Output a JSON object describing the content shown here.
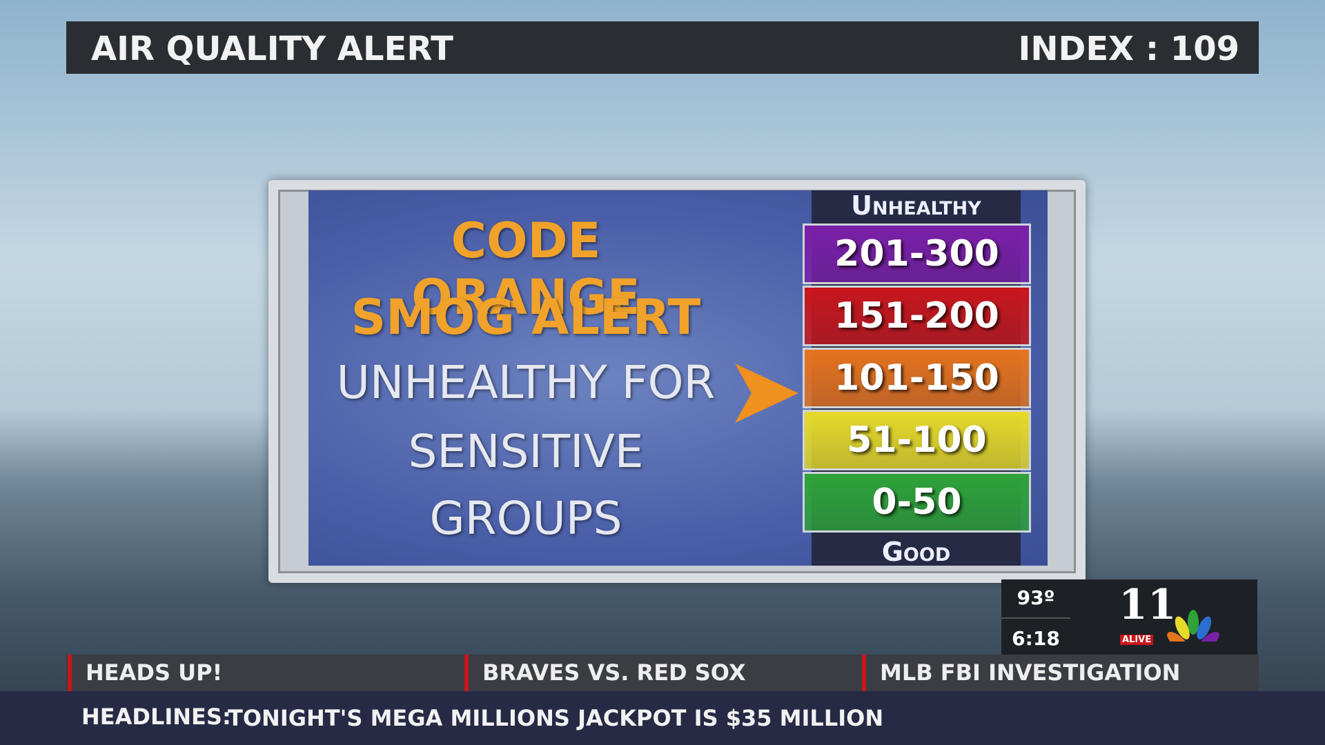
{
  "header": {
    "title": "AIR QUALITY ALERT",
    "index_label": "INDEX : 109"
  },
  "panel": {
    "headline": [
      "CODE ORANGE",
      "SMOG ALERT"
    ],
    "message": [
      "UNHEALTHY FOR",
      "SENSITIVE",
      "GROUPS"
    ],
    "scale": {
      "top_label": "Unhealthy",
      "bottom_label": "Good",
      "levels": [
        {
          "range": "201-300",
          "color": "#7a1fa8"
        },
        {
          "range": "151-200",
          "color": "#c8161c"
        },
        {
          "range": "101-150",
          "color": "#e5731f"
        },
        {
          "range": "51-100",
          "color": "#e6da2a"
        },
        {
          "range": "0-50",
          "color": "#2ea33a"
        }
      ]
    }
  },
  "weather": {
    "temperature": "93º",
    "time": "6:18"
  },
  "logo": {
    "number": "11",
    "name": "ALIVE"
  },
  "ticker": {
    "items": [
      "HEADS UP!",
      "BRAVES VS. RED SOX",
      "MLB FBI INVESTIGATION"
    ],
    "headlines_label": "HEADLINES:",
    "headline": "TONIGHT'S MEGA MILLIONS JACKPOT IS $35 MILLION"
  }
}
